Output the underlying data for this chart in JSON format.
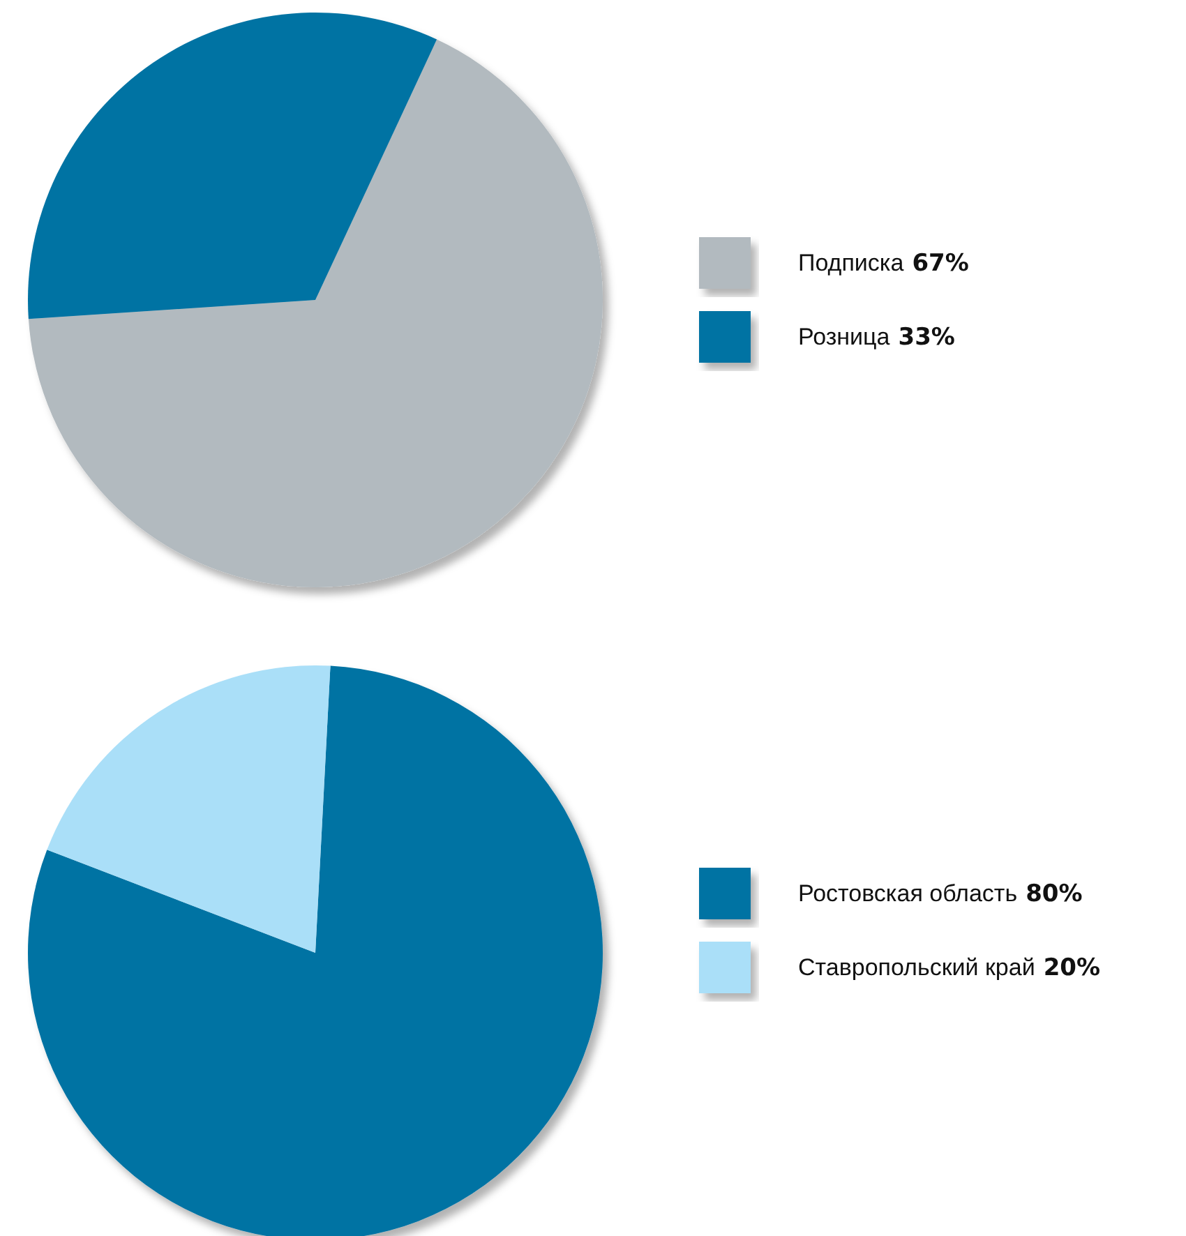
{
  "chart_data": [
    {
      "type": "pie",
      "categories": [
        "Подписка",
        "Розница"
      ],
      "values": [
        67,
        33
      ],
      "colors": [
        "#b2babf",
        "#0073a3"
      ],
      "value_labels": [
        "67%",
        "33%"
      ],
      "legend": "right"
    },
    {
      "type": "pie",
      "categories": [
        "Ростовская область",
        "Ставропольский край"
      ],
      "values": [
        80,
        20
      ],
      "colors": [
        "#0073a3",
        "#aadff8"
      ],
      "value_labels": [
        "80%",
        "20%"
      ],
      "legend": "right"
    }
  ]
}
